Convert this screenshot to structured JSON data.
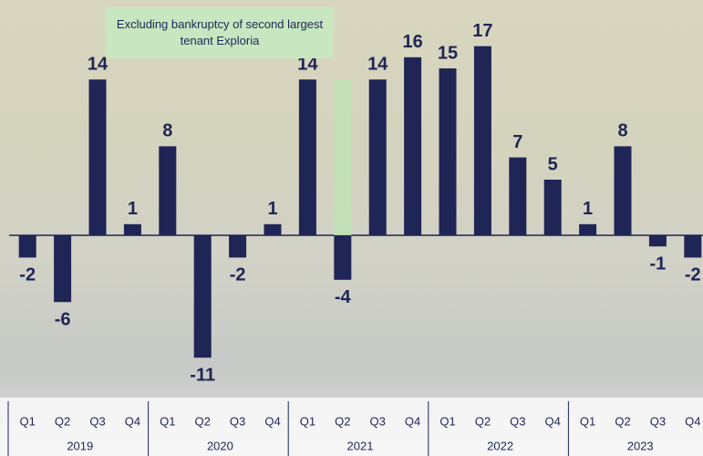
{
  "chart_data": {
    "type": "bar",
    "categories": [
      "Q1",
      "Q2",
      "Q3",
      "Q4",
      "Q1",
      "Q2",
      "Q3",
      "Q4",
      "Q1",
      "Q2",
      "Q3",
      "Q4",
      "Q1",
      "Q2",
      "Q3",
      "Q4",
      "Q1",
      "Q2",
      "Q3",
      "Q4"
    ],
    "years": [
      "2019",
      "2020",
      "2021",
      "2022",
      "2023"
    ],
    "series": [
      {
        "color": "#1f2555",
        "values": [
          -2,
          -6,
          14,
          1,
          8,
          -11,
          -2,
          1,
          14,
          -4,
          14,
          16,
          15,
          17,
          7,
          5,
          1,
          8,
          -1,
          -2
        ]
      },
      {
        "name": "Excluding bankruptcy of second largest tenant Exploria",
        "color": "#bfe3b4",
        "values": [
          null,
          null,
          null,
          null,
          null,
          null,
          null,
          null,
          null,
          14,
          null,
          null,
          null,
          null,
          null,
          null,
          null,
          null,
          null,
          null
        ]
      }
    ],
    "ylim": [
      -12,
      18
    ]
  }
}
